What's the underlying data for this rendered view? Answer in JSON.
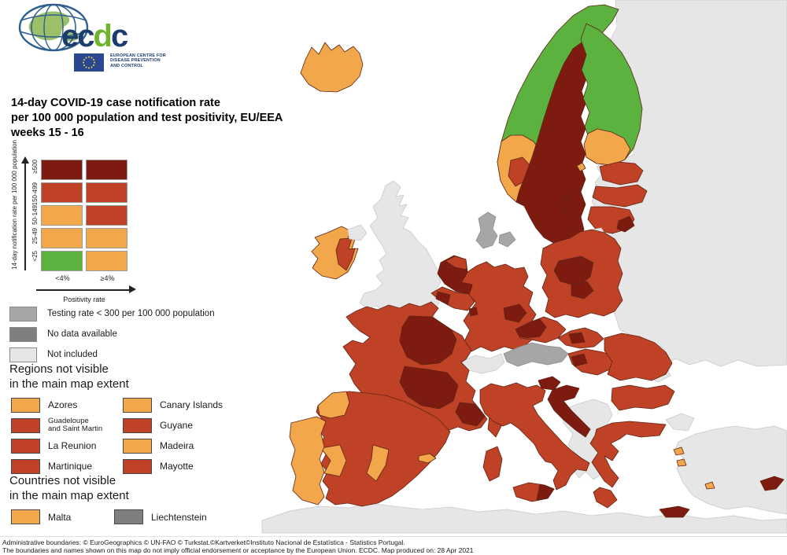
{
  "colors": {
    "dark_red": "#7E1B10",
    "red": "#BF4226",
    "orange": "#F2A74B",
    "green": "#5CB23E",
    "gray_low_testing": "#A6A6A6",
    "gray_no_data": "#7F7F7F",
    "gray_not_included": "#E6E6E6",
    "sea": "#FFFFFF"
  },
  "logo": {
    "wordmark_e": "e",
    "wordmark_c1": "c",
    "wordmark_d": "d",
    "wordmark_c2": "c",
    "org_line1": "EUROPEAN CENTRE FOR",
    "org_line2": "DISEASE PREVENTION",
    "org_line3": "AND CONTROL"
  },
  "title": {
    "line1": "14-day COVID-19 case notification rate",
    "line2": "per 100 000 population and test positivity, EU/EEA",
    "line3": "weeks 15 - 16"
  },
  "legend_matrix": {
    "y_axis_label": "14-day notification rate per 100 000 population",
    "x_axis_label": "Positivity rate",
    "col_labels": [
      "<4%",
      "≥4%"
    ],
    "rows": [
      {
        "label": "≥500",
        "cells": [
          "dark_red",
          "dark_red"
        ]
      },
      {
        "label": "150-499",
        "cells": [
          "red",
          "red"
        ]
      },
      {
        "label": "50-149",
        "cells": [
          "orange",
          "red"
        ]
      },
      {
        "label": "25-49",
        "cells": [
          "orange",
          "orange"
        ]
      },
      {
        "label": "<25",
        "cells": [
          "green",
          "orange"
        ]
      }
    ]
  },
  "legend_status": [
    {
      "label": "Testing rate < 300 per 100 000 population",
      "color_key": "gray_low_testing"
    },
    {
      "label": "No data available",
      "color_key": "gray_no_data"
    },
    {
      "label": "Not included",
      "color_key": "gray_not_included"
    }
  ],
  "regions_not_visible": {
    "heading_line1": "Regions not visible",
    "heading_line2": "in the main map extent",
    "items": [
      {
        "label": "Azores",
        "color_key": "orange",
        "two_line": false
      },
      {
        "label": "Canary Islands",
        "color_key": "orange",
        "two_line": false
      },
      {
        "label": "Guadeloupe and Saint Martin",
        "color_key": "red",
        "two_line": true
      },
      {
        "label": "Guyane",
        "color_key": "red",
        "two_line": false
      },
      {
        "label": "La Reunion",
        "color_key": "red",
        "two_line": false
      },
      {
        "label": "Madeira",
        "color_key": "orange",
        "two_line": false
      },
      {
        "label": "Martinique",
        "color_key": "red",
        "two_line": false
      },
      {
        "label": "Mayotte",
        "color_key": "red",
        "two_line": false
      }
    ]
  },
  "countries_not_visible": {
    "heading_line1": "Countries not visible",
    "heading_line2": "in the main map extent",
    "items": [
      {
        "label": "Malta",
        "color_key": "orange"
      },
      {
        "label": "Liechtenstein",
        "color_key": "gray_no_data"
      }
    ]
  },
  "footer": {
    "line1": "Administrative boundaries: © EuroGeographics © UN-FAO © Turkstat.©Kartverket©Instituto Nacional de Estatística - Statistics Portugal.",
    "line2": "The boundaries and names shown on this map do not imply official endorsement or acceptance by the European Union. ECDC. Map produced on: 28 Apr 2021"
  },
  "map": {
    "regions": [
      {
        "id": "eastern_europe_non_eu",
        "name": "Russia / Belarus / Ukraine (not included)",
        "status": "gray_not_included"
      },
      {
        "id": "turkey",
        "name": "Turkey (not included)",
        "status": "gray_not_included"
      },
      {
        "id": "turkey_thrace",
        "name": "Turkey - Thrace (not included)",
        "status": "gray_not_included"
      },
      {
        "id": "north_africa",
        "name": "North Africa (not included)",
        "status": "gray_not_included"
      },
      {
        "id": "western_balkans",
        "name": "Western Balkans (not included)",
        "status": "gray_not_included"
      },
      {
        "id": "switzerland",
        "name": "Switzerland (not included)",
        "status": "gray_not_included"
      },
      {
        "id": "united_kingdom",
        "name": "United Kingdom (not included)",
        "status": "gray_not_included"
      },
      {
        "id": "ireland",
        "name": "Ireland",
        "status": "orange"
      },
      {
        "id": "ireland_east",
        "name": "Ireland - East",
        "status": "red"
      },
      {
        "id": "northern_ireland",
        "name": "Northern Ireland (not included)",
        "status": "gray_not_included"
      },
      {
        "id": "iceland",
        "name": "Iceland",
        "status": "orange"
      },
      {
        "id": "norway_north",
        "name": "Norway - North",
        "status": "green"
      },
      {
        "id": "norway_south",
        "name": "Norway - South",
        "status": "orange"
      },
      {
        "id": "norway_oslo",
        "name": "Norway - Oslo region",
        "status": "red"
      },
      {
        "id": "sweden",
        "name": "Sweden",
        "status": "dark_red"
      },
      {
        "id": "gotland",
        "name": "Gotland",
        "status": "dark_red"
      },
      {
        "id": "finland",
        "name": "Finland",
        "status": "green"
      },
      {
        "id": "finland_south",
        "name": "Finland - South",
        "status": "orange"
      },
      {
        "id": "aland",
        "name": "Åland Islands",
        "status": "orange"
      },
      {
        "id": "denmark_jutland",
        "name": "Denmark - Jutland",
        "status": "gray_low_testing"
      },
      {
        "id": "denmark_islands",
        "name": "Denmark - Islands",
        "status": "gray_low_testing"
      },
      {
        "id": "estonia",
        "name": "Estonia",
        "status": "red"
      },
      {
        "id": "latvia",
        "name": "Latvia",
        "status": "red"
      },
      {
        "id": "lithuania",
        "name": "Lithuania",
        "status": "red"
      },
      {
        "id": "lithuania_se",
        "name": "Lithuania - Southeast",
        "status": "dark_red"
      },
      {
        "id": "kaliningrad",
        "name": "Kaliningrad (not included)",
        "status": "gray_not_included"
      },
      {
        "id": "poland",
        "name": "Poland",
        "status": "red"
      },
      {
        "id": "poland_central_1",
        "name": "Poland - Central",
        "status": "dark_red"
      },
      {
        "id": "poland_central_2",
        "name": "Poland - South-central",
        "status": "dark_red"
      },
      {
        "id": "germany",
        "name": "Germany",
        "status": "red"
      },
      {
        "id": "germany_east",
        "name": "Germany - Saxony/Thuringia",
        "status": "dark_red"
      },
      {
        "id": "netherlands",
        "name": "Netherlands",
        "status": "dark_red"
      },
      {
        "id": "netherlands_north",
        "name": "Netherlands - North",
        "status": "red"
      },
      {
        "id": "belgium",
        "name": "Belgium",
        "status": "red"
      },
      {
        "id": "belgium_west",
        "name": "Belgium - West",
        "status": "dark_red"
      },
      {
        "id": "luxembourg",
        "name": "Luxembourg",
        "status": "dark_red"
      },
      {
        "id": "czechia",
        "name": "Czechia",
        "status": "red"
      },
      {
        "id": "czechia_west",
        "name": "Czechia - West",
        "status": "dark_red"
      },
      {
        "id": "slovakia",
        "name": "Slovakia",
        "status": "red"
      },
      {
        "id": "slovakia_central",
        "name": "Slovakia - Central",
        "status": "dark_red"
      },
      {
        "id": "austria",
        "name": "Austria",
        "status": "gray_low_testing"
      },
      {
        "id": "hungary",
        "name": "Hungary",
        "status": "red"
      },
      {
        "id": "hungary_west",
        "name": "Hungary - West",
        "status": "dark_red"
      },
      {
        "id": "france",
        "name": "France",
        "status": "red"
      },
      {
        "id": "france_north",
        "name": "France - North/Centre",
        "status": "dark_red"
      },
      {
        "id": "france_central",
        "name": "France - Central/South",
        "status": "dark_red"
      },
      {
        "id": "france_southeast",
        "name": "France - Southeast",
        "status": "dark_red"
      },
      {
        "id": "corsica",
        "name": "Corsica",
        "status": "red"
      },
      {
        "id": "sardinia",
        "name": "Sardinia",
        "status": "red"
      },
      {
        "id": "spain",
        "name": "Spain",
        "status": "red"
      },
      {
        "id": "galicia",
        "name": "Spain - Galicia",
        "status": "orange"
      },
      {
        "id": "extremadura",
        "name": "Spain - Extremadura",
        "status": "orange"
      },
      {
        "id": "valencia_murcia",
        "name": "Spain - Valencia/Murcia",
        "status": "orange"
      },
      {
        "id": "balearics",
        "name": "Balearic Islands",
        "status": "orange"
      },
      {
        "id": "portugal",
        "name": "Portugal",
        "status": "orange"
      },
      {
        "id": "italy",
        "name": "Italy",
        "status": "red"
      },
      {
        "id": "sicily",
        "name": "Sicily",
        "status": "red"
      },
      {
        "id": "sicily_east",
        "name": "Sicily - East",
        "status": "dark_red"
      },
      {
        "id": "slovenia",
        "name": "Slovenia",
        "status": "dark_red"
      },
      {
        "id": "croatia",
        "name": "Croatia",
        "status": "dark_red"
      },
      {
        "id": "romania",
        "name": "Romania",
        "status": "red"
      },
      {
        "id": "bulgaria",
        "name": "Bulgaria",
        "status": "red"
      },
      {
        "id": "greece",
        "name": "Greece",
        "status": "red"
      },
      {
        "id": "peloponnese",
        "name": "Greece - Peloponnese",
        "status": "red"
      },
      {
        "id": "crete",
        "name": "Crete",
        "status": "dark_red"
      },
      {
        "id": "aegean_1",
        "name": "Aegean island",
        "status": "orange"
      },
      {
        "id": "aegean_2",
        "name": "Aegean island",
        "status": "orange"
      },
      {
        "id": "aegean_3",
        "name": "Aegean island",
        "status": "orange"
      },
      {
        "id": "cyprus",
        "name": "Cyprus",
        "status": "dark_red"
      }
    ]
  }
}
